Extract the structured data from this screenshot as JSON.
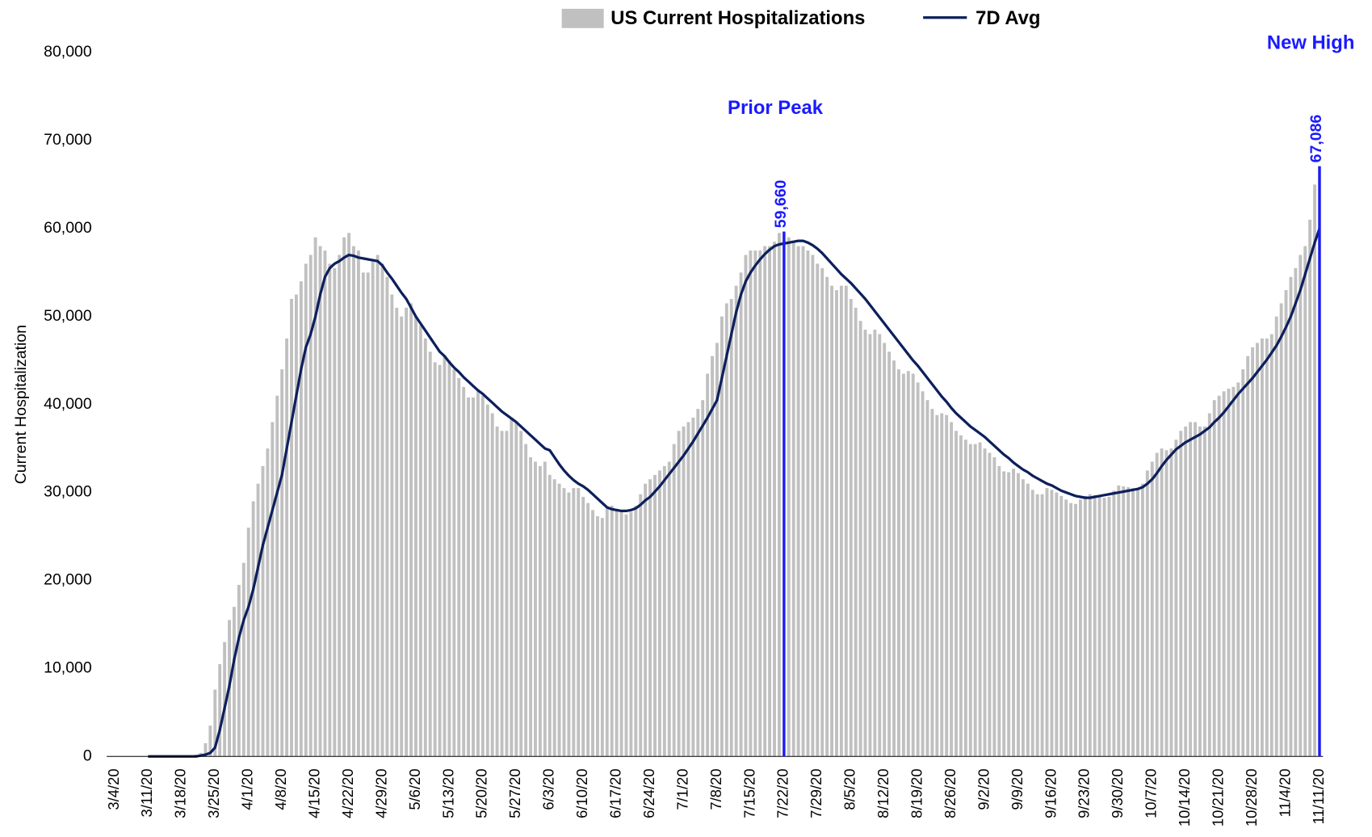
{
  "chart_data": {
    "type": "bar_line",
    "ylabel": "Current Hospitalization",
    "ylim": [
      0,
      80000
    ],
    "yticks": [
      0,
      {
        "value": 10000,
        "label": "10,000"
      },
      {
        "value": 20000,
        "label": "20,000"
      },
      {
        "value": 30000,
        "label": "30,000"
      },
      {
        "value": 40000,
        "label": "40,000"
      },
      {
        "value": 50000,
        "label": "50,000"
      },
      {
        "value": 60000,
        "label": "60,000"
      },
      {
        "value": 70000,
        "label": "70,000"
      },
      {
        "value": 80000,
        "label": "80,000"
      }
    ],
    "categories": [
      "3/4/20",
      null,
      null,
      null,
      null,
      null,
      null,
      "3/11/20",
      null,
      null,
      null,
      null,
      null,
      null,
      "3/18/20",
      null,
      null,
      null,
      null,
      null,
      null,
      "3/25/20",
      null,
      null,
      null,
      null,
      null,
      null,
      "4/1/20",
      null,
      null,
      null,
      null,
      null,
      null,
      "4/8/20",
      null,
      null,
      null,
      null,
      null,
      null,
      "4/15/20",
      null,
      null,
      null,
      null,
      null,
      null,
      "4/22/20",
      null,
      null,
      null,
      null,
      null,
      null,
      "4/29/20",
      null,
      null,
      null,
      null,
      null,
      null,
      "5/6/20",
      null,
      null,
      null,
      null,
      null,
      null,
      "5/13/20",
      null,
      null,
      null,
      null,
      null,
      null,
      "5/20/20",
      null,
      null,
      null,
      null,
      null,
      null,
      "5/27/20",
      null,
      null,
      null,
      null,
      null,
      null,
      "6/3/20",
      null,
      null,
      null,
      null,
      null,
      null,
      "6/10/20",
      null,
      null,
      null,
      null,
      null,
      null,
      "6/17/20",
      null,
      null,
      null,
      null,
      null,
      null,
      "6/24/20",
      null,
      null,
      null,
      null,
      null,
      null,
      "7/1/20",
      null,
      null,
      null,
      null,
      null,
      null,
      "7/8/20",
      null,
      null,
      null,
      null,
      null,
      null,
      "7/15/20",
      null,
      null,
      null,
      null,
      null,
      null,
      "7/22/20",
      null,
      null,
      null,
      null,
      null,
      null,
      "7/29/20",
      null,
      null,
      null,
      null,
      null,
      null,
      "8/5/20",
      null,
      null,
      null,
      null,
      null,
      null,
      "8/12/20",
      null,
      null,
      null,
      null,
      null,
      null,
      "8/19/20",
      null,
      null,
      null,
      null,
      null,
      null,
      "8/26/20",
      null,
      null,
      null,
      null,
      null,
      null,
      "9/2/20",
      null,
      null,
      null,
      null,
      null,
      null,
      "9/9/20",
      null,
      null,
      null,
      null,
      null,
      null,
      "9/16/20",
      null,
      null,
      null,
      null,
      null,
      null,
      "9/23/20",
      null,
      null,
      null,
      null,
      null,
      null,
      "9/30/20",
      null,
      null,
      null,
      null,
      null,
      null,
      "10/7/20",
      null,
      null,
      null,
      null,
      null,
      null,
      "10/14/20",
      null,
      null,
      null,
      null,
      null,
      null,
      "10/21/20",
      null,
      null,
      null,
      null,
      null,
      null,
      "10/28/20",
      null,
      null,
      null,
      null,
      null,
      null,
      "11/4/20",
      null,
      null,
      null,
      null,
      null,
      null,
      "11/11/20"
    ],
    "series": [
      {
        "name": "US Current Hospitalizations",
        "kind": "bar",
        "color": "#c0c0c0",
        "values": [
          0,
          0,
          0,
          0,
          0,
          0,
          0,
          0,
          0,
          0,
          0,
          0,
          0,
          0,
          0,
          0,
          100,
          200,
          400,
          1500,
          3500,
          7600,
          10500,
          13000,
          15500,
          17000,
          19500,
          22000,
          26000,
          29000,
          31000,
          33000,
          35000,
          38000,
          41000,
          44000,
          47500,
          52000,
          52500,
          54000,
          56000,
          57000,
          59000,
          58000,
          57500,
          56000,
          55500,
          57000,
          59000,
          59500,
          58000,
          57500,
          55000,
          55000,
          56500,
          57000,
          56000,
          54500,
          52500,
          51000,
          50000,
          51000,
          51500,
          50000,
          49000,
          47500,
          46000,
          44800,
          44500,
          45500,
          45000,
          44000,
          43000,
          42000,
          40800,
          40800,
          41500,
          41000,
          40000,
          39000,
          37500,
          37000,
          37000,
          38500,
          38000,
          37000,
          35500,
          34000,
          33500,
          33000,
          33500,
          32000,
          31500,
          31000,
          30500,
          30000,
          30500,
          30500,
          29500,
          28800,
          28000,
          27300,
          27100,
          28200,
          28500,
          28000,
          27800,
          27500,
          27800,
          28500,
          29800,
          31000,
          31500,
          32000,
          32500,
          33000,
          33500,
          35500,
          37000,
          37500,
          38000,
          38500,
          39500,
          40500,
          43500,
          45500,
          47000,
          50000,
          51500,
          52000,
          53500,
          55000,
          57000,
          57500,
          57500,
          57500,
          58000,
          58000,
          58500,
          59500,
          59660,
          59000,
          58500,
          58000,
          58000,
          57500,
          57000,
          56000,
          55500,
          54500,
          53500,
          53000,
          53500,
          53500,
          52000,
          51000,
          49500,
          48500,
          48000,
          48500,
          48000,
          47000,
          46000,
          45000,
          44000,
          43500,
          43800,
          43500,
          42500,
          41500,
          40500,
          39500,
          38800,
          39000,
          38800,
          38000,
          37000,
          36500,
          36000,
          35500,
          35500,
          35700,
          35000,
          34500,
          34000,
          33000,
          32400,
          32300,
          32700,
          32200,
          31500,
          31000,
          30300,
          29800,
          29800,
          30500,
          30300,
          30000,
          29600,
          29200,
          28800,
          28700,
          29200,
          29600,
          29800,
          29700,
          29600,
          29400,
          29500,
          30200,
          30800,
          30700,
          30600,
          30500,
          30400,
          31000,
          32500,
          33500,
          34500,
          35000,
          34800,
          35000,
          36000,
          37000,
          37500,
          38000,
          38000,
          37500,
          37500,
          39000,
          40500,
          41000,
          41500,
          41800,
          42000,
          42500,
          44000,
          45500,
          46500,
          47000,
          47500,
          47500,
          48000,
          50000,
          51500,
          53000,
          54500,
          55500,
          57000,
          58000,
          61000,
          65000,
          67086
        ]
      },
      {
        "name": "7D Avg",
        "kind": "line",
        "color": "#0d1f5c",
        "values": [
          null,
          null,
          null,
          null,
          null,
          null,
          null,
          0,
          0,
          0,
          0,
          0,
          0,
          0,
          0,
          0,
          0,
          0,
          100,
          200,
          400,
          1000,
          3000,
          5500,
          8000,
          11000,
          13500,
          15500,
          17000,
          19000,
          21500,
          24000,
          26000,
          28000,
          30000,
          32000,
          35000,
          38000,
          41000,
          44000,
          46500,
          48000,
          50000,
          52500,
          54500,
          55500,
          56000,
          56300,
          56700,
          57000,
          56900,
          56700,
          56600,
          56500,
          56400,
          56300,
          55800,
          55000,
          54300,
          53500,
          52700,
          52000,
          51000,
          50000,
          49200,
          48400,
          47600,
          46800,
          46000,
          45500,
          44800,
          44200,
          43700,
          43100,
          42600,
          42100,
          41600,
          41200,
          40700,
          40200,
          39700,
          39200,
          38800,
          38400,
          38000,
          37500,
          37000,
          36500,
          36000,
          35500,
          35000,
          34800,
          34000,
          33200,
          32500,
          31900,
          31400,
          31000,
          30700,
          30300,
          29800,
          29300,
          28800,
          28300,
          28100,
          28000,
          27900,
          27900,
          28000,
          28200,
          28600,
          29100,
          29500,
          30100,
          30700,
          31400,
          32100,
          32800,
          33500,
          34200,
          35000,
          35800,
          36700,
          37600,
          38500,
          39500,
          40500,
          43000,
          45500,
          48000,
          50500,
          52500,
          54000,
          55000,
          55800,
          56500,
          57100,
          57600,
          58000,
          58200,
          58300,
          58400,
          58500,
          58600,
          58600,
          58400,
          58100,
          57700,
          57200,
          56600,
          56000,
          55400,
          54800,
          54300,
          53800,
          53200,
          52600,
          52000,
          51300,
          50600,
          49900,
          49200,
          48500,
          47800,
          47100,
          46400,
          45700,
          45000,
          44400,
          43700,
          43000,
          42300,
          41600,
          40900,
          40300,
          39600,
          39000,
          38500,
          38000,
          37500,
          37100,
          36700,
          36300,
          35800,
          35300,
          34800,
          34300,
          33900,
          33400,
          33000,
          32600,
          32300,
          31900,
          31600,
          31300,
          31000,
          30800,
          30500,
          30200,
          30000,
          29800,
          29600,
          29500,
          29400,
          29400,
          29500,
          29600,
          29700,
          29800,
          29900,
          30000,
          30100,
          30200,
          30300,
          30400,
          30600,
          31000,
          31500,
          32200,
          33000,
          33700,
          34300,
          34900,
          35300,
          35700,
          36000,
          36300,
          36600,
          37000,
          37400,
          38000,
          38500,
          39100,
          39800,
          40500,
          41200,
          41800,
          42400,
          43000,
          43700,
          44400,
          45100,
          45900,
          46700,
          47700,
          48800,
          50000,
          51500,
          53000,
          54800,
          56600,
          58400,
          60000
        ]
      }
    ],
    "annotations": [
      {
        "x": "7/22/20",
        "value": 59660,
        "label": "59,660",
        "text": "Prior Peak",
        "color": "#1a1aff"
      },
      {
        "x": "11/11/20",
        "value": 67086,
        "label": "67,086",
        "text": "New High",
        "color": "#1a1aff"
      }
    ]
  }
}
